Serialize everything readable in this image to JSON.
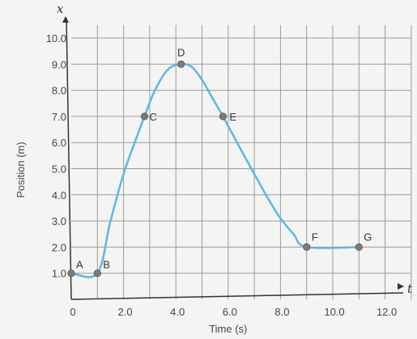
{
  "chart_data": {
    "type": "line",
    "title": "",
    "xlabel": "Time (s)",
    "ylabel": "Position (m)",
    "x_axis_var": "t",
    "y_axis_var": "x",
    "xlim": [
      0,
      13
    ],
    "ylim": [
      0,
      10.5
    ],
    "x_ticks": [
      0,
      2,
      4,
      6,
      8,
      10,
      12
    ],
    "x_tick_labels": [
      "0",
      "2.0",
      "4.0",
      "6.0",
      "8.0",
      "10.0",
      "12.0"
    ],
    "y_ticks": [
      1,
      2,
      3,
      4,
      5,
      6,
      7,
      8,
      9,
      10
    ],
    "y_tick_labels": [
      "1.0",
      "2.0",
      "3.0",
      "4.0",
      "5.0",
      "6.0",
      "7.0",
      "8.0",
      "9.0",
      "10.0"
    ],
    "grid": true,
    "line_color": "#5bb8e3",
    "point_color": "#7a7a7a",
    "grid_color": "#9a9a9a",
    "axis_color": "#333333",
    "curve": [
      {
        "x": 0,
        "y": 1.0
      },
      {
        "x": 1.0,
        "y": 1.0
      },
      {
        "x": 1.5,
        "y": 3.0
      },
      {
        "x": 2.0,
        "y": 4.8
      },
      {
        "x": 2.5,
        "y": 6.2
      },
      {
        "x": 2.8,
        "y": 7.0
      },
      {
        "x": 3.2,
        "y": 8.0
      },
      {
        "x": 3.7,
        "y": 8.8
      },
      {
        "x": 4.2,
        "y": 9.0
      },
      {
        "x": 4.6,
        "y": 8.9
      },
      {
        "x": 5.0,
        "y": 8.4
      },
      {
        "x": 5.4,
        "y": 7.7
      },
      {
        "x": 5.8,
        "y": 7.0
      },
      {
        "x": 6.5,
        "y": 5.7
      },
      {
        "x": 7.0,
        "y": 4.8
      },
      {
        "x": 7.5,
        "y": 3.9
      },
      {
        "x": 8.0,
        "y": 3.1
      },
      {
        "x": 8.5,
        "y": 2.5
      },
      {
        "x": 9.0,
        "y": 2.0
      },
      {
        "x": 11.0,
        "y": 2.0
      }
    ],
    "points": [
      {
        "label": "A",
        "x": 0,
        "y": 1.0
      },
      {
        "label": "B",
        "x": 1.0,
        "y": 1.0
      },
      {
        "label": "C",
        "x": 2.8,
        "y": 7.0
      },
      {
        "label": "D",
        "x": 4.2,
        "y": 9.0
      },
      {
        "label": "E",
        "x": 5.8,
        "y": 7.0
      },
      {
        "label": "F",
        "x": 9.0,
        "y": 2.0
      },
      {
        "label": "G",
        "x": 11.0,
        "y": 2.0
      }
    ]
  }
}
